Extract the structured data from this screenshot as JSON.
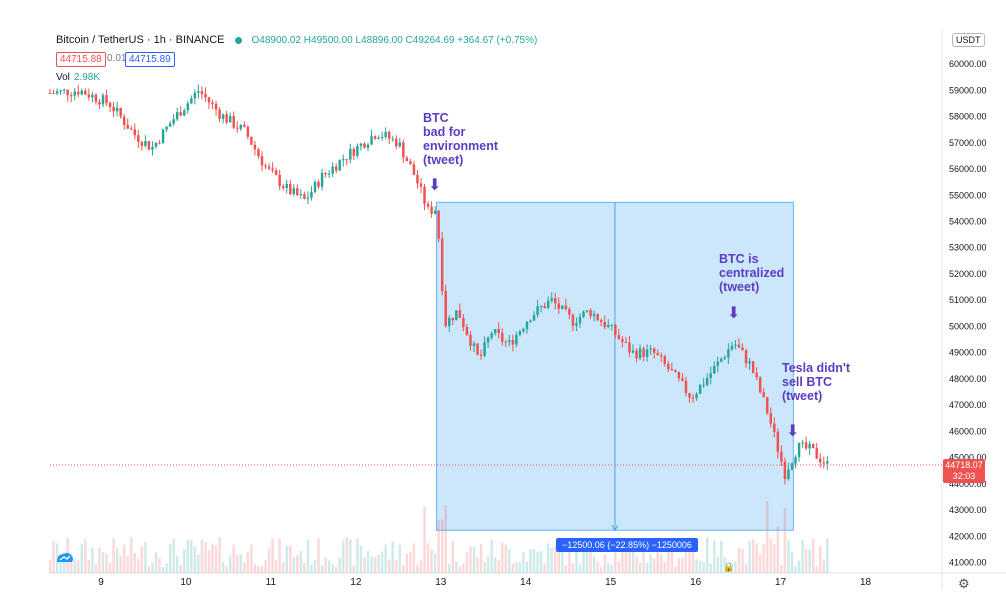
{
  "header": {
    "symbol": "Bitcoin / TetherUS · 1h · BINANCE",
    "ohlc": "O48900.02 H49500.00 L48896.00 C49264.69 +364.67 (+0.75%)"
  },
  "prices": {
    "bid": "44715.88",
    "spread": "0.01",
    "ask": "44715.89"
  },
  "volume": {
    "label": "Vol",
    "value": "2.98K"
  },
  "currency_badge": "USDT",
  "last_price": {
    "value": "44718.07",
    "countdown": "32:03"
  },
  "measure_label": "−12500.06 (−22.85%) −1250006",
  "annotations": [
    {
      "text": "BTC\nbad for\nenvironment\n(tweet)",
      "x_day": 12.9,
      "y": 55500
    },
    {
      "text": "BTC is\ncentralized\n(tweet)",
      "x_day": 16.45,
      "y": 50300
    },
    {
      "text": "Tesla didn't\nsell BTC\n(tweet)",
      "x_day": 17.15,
      "y": 45700
    }
  ],
  "colors": {
    "up": "#26a69a",
    "down": "#ef5350",
    "accent": "#2962ff",
    "annotation": "#5b3cc4",
    "measure_fill": "#bbdefb"
  },
  "chart_data": {
    "type": "candlestick",
    "title": "Bitcoin / TetherUS · 1h · BINANCE",
    "x_ticks": [
      9,
      10,
      11,
      12,
      13,
      14,
      15,
      16,
      17,
      18
    ],
    "xlim": [
      8.4,
      18.9
    ],
    "y_ticks": [
      41000,
      42000,
      43000,
      44000,
      45000,
      46000,
      47000,
      48000,
      49000,
      50000,
      51000,
      52000,
      53000,
      54000,
      55000,
      56000,
      57000,
      58000,
      59000,
      60000
    ],
    "ylim": [
      40600,
      61300
    ],
    "price_path": [
      [
        8.4,
        58900
      ],
      [
        8.75,
        59000
      ],
      [
        9.1,
        58500
      ],
      [
        9.4,
        57300
      ],
      [
        9.6,
        56800
      ],
      [
        9.85,
        57900
      ],
      [
        10.15,
        59000
      ],
      [
        10.4,
        58100
      ],
      [
        10.7,
        57400
      ],
      [
        10.95,
        56000
      ],
      [
        11.2,
        55200
      ],
      [
        11.4,
        54800
      ],
      [
        11.6,
        55700
      ],
      [
        11.85,
        56400
      ],
      [
        12.05,
        56900
      ],
      [
        12.25,
        57400
      ],
      [
        12.5,
        57000
      ],
      [
        12.7,
        55700
      ],
      [
        12.85,
        54400
      ],
      [
        12.95,
        54500
      ],
      [
        13.05,
        50100
      ],
      [
        13.2,
        50600
      ],
      [
        13.45,
        48700
      ],
      [
        13.6,
        49800
      ],
      [
        13.8,
        49300
      ],
      [
        14.05,
        50400
      ],
      [
        14.3,
        51000
      ],
      [
        14.55,
        50200
      ],
      [
        14.75,
        50600
      ],
      [
        15.0,
        49900
      ],
      [
        15.25,
        49000
      ],
      [
        15.5,
        49000
      ],
      [
        15.7,
        48300
      ],
      [
        15.95,
        47300
      ],
      [
        16.15,
        48100
      ],
      [
        16.45,
        49400
      ],
      [
        16.65,
        48500
      ],
      [
        16.85,
        46700
      ],
      [
        17.05,
        44400
      ],
      [
        17.2,
        45400
      ],
      [
        17.35,
        45300
      ],
      [
        17.55,
        44718
      ]
    ],
    "measure": {
      "x_start": 12.95,
      "x_end": 17.15,
      "y_top": 54730,
      "y_bottom": 42230,
      "change": -12500.06,
      "change_pct": -22.85
    },
    "last_price": 44718.07
  }
}
